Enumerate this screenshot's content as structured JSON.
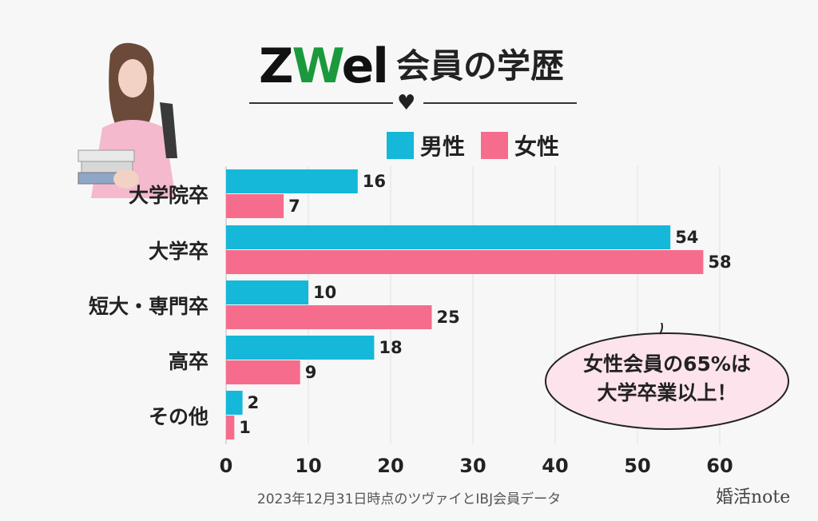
{
  "header": {
    "logo_prefix": "Z",
    "logo_mid": "W",
    "logo_suffix": "el",
    "title": "会員の学歴"
  },
  "legend": [
    {
      "name": "男性",
      "color": "#15b8d8"
    },
    {
      "name": "女性",
      "color": "#f66c8c"
    }
  ],
  "callout": {
    "line1": "女性会員の65%は",
    "line2": "大学卒業以上！"
  },
  "footer": {
    "source": "2023年12月31日時点のツヴァイとIBJ会員データ",
    "brand": "婚活note"
  },
  "chart_data": {
    "type": "bar",
    "orientation": "horizontal",
    "categories": [
      "大学院卒",
      "大学卒",
      "短大・専門卒",
      "高卒",
      "その他"
    ],
    "series": [
      {
        "name": "男性",
        "color": "#15b8d8",
        "values": [
          16,
          54,
          10,
          18,
          2
        ]
      },
      {
        "name": "女性",
        "color": "#f66c8c",
        "values": [
          7,
          58,
          25,
          9,
          1
        ]
      }
    ],
    "xlim": [
      0,
      60
    ],
    "xticks": [
      0,
      10,
      20,
      30,
      40,
      50,
      60
    ],
    "grid": true,
    "legend_position": "top"
  }
}
